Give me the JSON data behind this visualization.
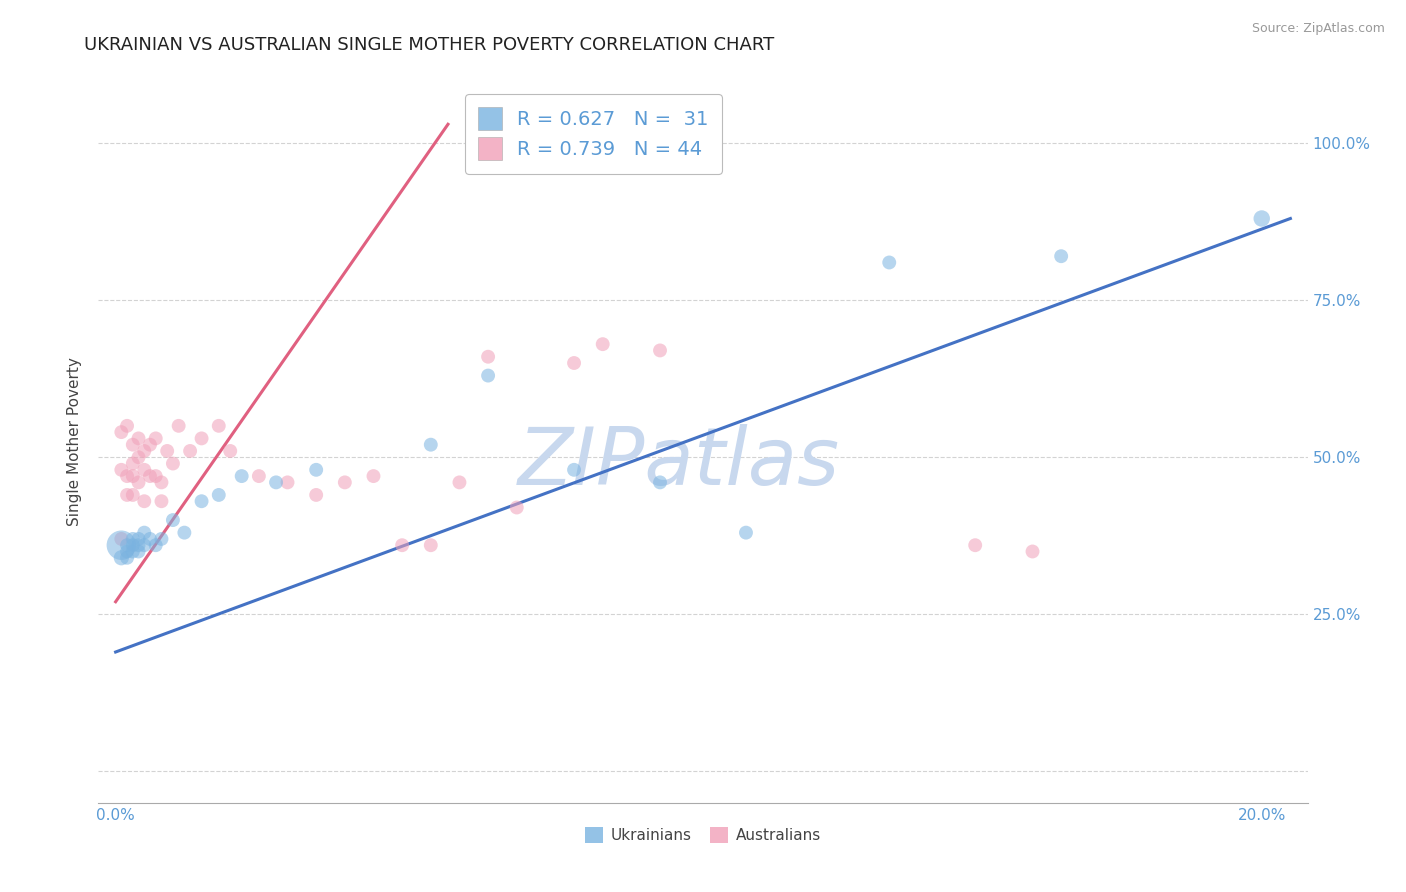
{
  "title": "UKRAINIAN VS AUSTRALIAN SINGLE MOTHER POVERTY CORRELATION CHART",
  "source": "Source: ZipAtlas.com",
  "ylabel_label": "Single Mother Poverty",
  "x_ticks": [
    0.0,
    0.025,
    0.05,
    0.075,
    0.1,
    0.125,
    0.15,
    0.175,
    0.2
  ],
  "x_tick_labels": [
    "0.0%",
    "",
    "",
    "",
    "",
    "",
    "",
    "",
    "20.0%"
  ],
  "y_ticks": [
    0.0,
    0.25,
    0.5,
    0.75,
    1.0
  ],
  "y_tick_labels": [
    "",
    "25.0%",
    "50.0%",
    "75.0%",
    "100.0%"
  ],
  "xlim": [
    -0.003,
    0.208
  ],
  "ylim": [
    -0.05,
    1.1
  ],
  "legend_label_blue": "R = 0.627   N =  31",
  "legend_label_pink": "R = 0.739   N = 44",
  "watermark": "ZIPatlas",
  "watermark_color": "#c8d8ee",
  "blue_color": "#7ab3e0",
  "pink_color": "#f0a0b8",
  "blue_line_color": "#4472c4",
  "pink_line_color": "#e06080",
  "background_color": "#ffffff",
  "grid_color": "#c8c8c8",
  "blue_line": {
    "x0": 0.0,
    "x1": 0.205,
    "y0": 0.19,
    "y1": 0.88
  },
  "pink_line": {
    "x0": 0.0,
    "x1": 0.058,
    "y0": 0.27,
    "y1": 1.03
  },
  "ukrainians": {
    "x": [
      0.001,
      0.001,
      0.002,
      0.002,
      0.002,
      0.003,
      0.003,
      0.003,
      0.004,
      0.004,
      0.004,
      0.005,
      0.005,
      0.006,
      0.007,
      0.008,
      0.01,
      0.012,
      0.015,
      0.018,
      0.022,
      0.028,
      0.035,
      0.055,
      0.065,
      0.08,
      0.095,
      0.11,
      0.135,
      0.165,
      0.2
    ],
    "y": [
      0.36,
      0.34,
      0.36,
      0.35,
      0.34,
      0.37,
      0.35,
      0.36,
      0.37,
      0.36,
      0.35,
      0.36,
      0.38,
      0.37,
      0.36,
      0.37,
      0.4,
      0.38,
      0.43,
      0.44,
      0.47,
      0.46,
      0.48,
      0.52,
      0.63,
      0.48,
      0.46,
      0.38,
      0.81,
      0.82,
      0.88
    ],
    "sizes": [
      450,
      120,
      100,
      100,
      100,
      100,
      100,
      100,
      100,
      100,
      100,
      100,
      100,
      100,
      100,
      100,
      100,
      100,
      100,
      100,
      100,
      100,
      100,
      100,
      100,
      100,
      100,
      100,
      100,
      100,
      140
    ]
  },
  "australians": {
    "x": [
      0.001,
      0.001,
      0.001,
      0.002,
      0.002,
      0.002,
      0.003,
      0.003,
      0.003,
      0.003,
      0.004,
      0.004,
      0.004,
      0.005,
      0.005,
      0.005,
      0.006,
      0.006,
      0.007,
      0.007,
      0.008,
      0.008,
      0.009,
      0.01,
      0.011,
      0.013,
      0.015,
      0.018,
      0.02,
      0.025,
      0.03,
      0.035,
      0.04,
      0.045,
      0.05,
      0.055,
      0.06,
      0.065,
      0.07,
      0.08,
      0.085,
      0.095,
      0.15,
      0.16
    ],
    "y": [
      0.37,
      0.54,
      0.48,
      0.55,
      0.47,
      0.44,
      0.52,
      0.49,
      0.47,
      0.44,
      0.53,
      0.5,
      0.46,
      0.51,
      0.48,
      0.43,
      0.52,
      0.47,
      0.53,
      0.47,
      0.46,
      0.43,
      0.51,
      0.49,
      0.55,
      0.51,
      0.53,
      0.55,
      0.51,
      0.47,
      0.46,
      0.44,
      0.46,
      0.47,
      0.36,
      0.36,
      0.46,
      0.66,
      0.42,
      0.65,
      0.68,
      0.67,
      0.36,
      0.35
    ],
    "sizes": [
      100,
      100,
      100,
      100,
      100,
      100,
      100,
      100,
      100,
      100,
      100,
      100,
      100,
      100,
      100,
      100,
      100,
      100,
      100,
      100,
      100,
      100,
      100,
      100,
      100,
      100,
      100,
      100,
      100,
      100,
      100,
      100,
      100,
      100,
      100,
      100,
      100,
      100,
      100,
      100,
      100,
      100,
      100,
      100
    ]
  }
}
